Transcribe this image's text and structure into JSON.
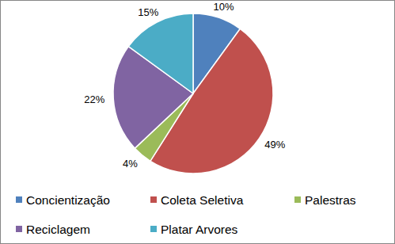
{
  "chart_data": {
    "type": "pie",
    "categories": [
      "Concientização",
      "Coleta Seletiva",
      "Palestras",
      "Reciclagem",
      "Platar Arvores"
    ],
    "values": [
      10,
      49,
      4,
      22,
      15
    ],
    "value_labels": [
      "10%",
      "49%",
      "4%",
      "22%",
      "15%"
    ],
    "colors": [
      "#4f81bd",
      "#c0504d",
      "#9bbb59",
      "#8064a2",
      "#4bacc6"
    ],
    "data_labels": true,
    "legend": "bottom"
  }
}
